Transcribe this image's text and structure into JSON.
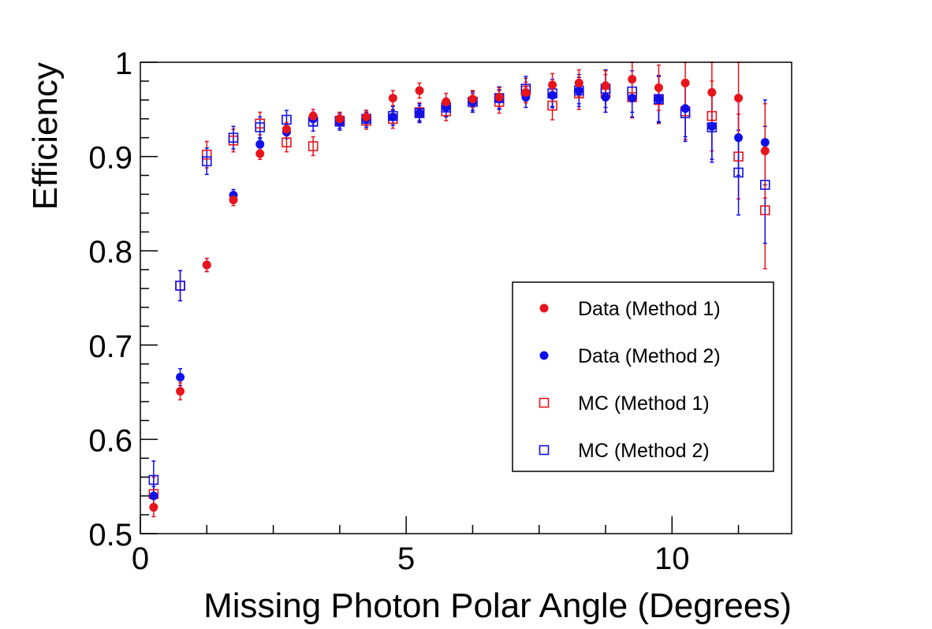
{
  "chart_data": {
    "type": "scatter",
    "title": "",
    "xlabel": "Missing Photon Polar Angle (Degrees)",
    "ylabel": "Efficiency",
    "xlim": [
      0,
      12.25
    ],
    "ylim": [
      0.5,
      1.0
    ],
    "x_ticks": [
      0,
      5,
      10
    ],
    "x_tick_labels": [
      "0",
      "5",
      "10"
    ],
    "y_ticks": [
      0.5,
      0.6,
      0.7,
      0.8,
      0.9,
      1.0
    ],
    "y_tick_labels": [
      "0.5",
      "0.6",
      "0.7",
      "0.8",
      "0.9",
      "1"
    ],
    "grid": false,
    "legend_position": "bottom-right",
    "x": [
      0.25,
      0.75,
      1.25,
      1.75,
      2.25,
      2.75,
      3.25,
      3.75,
      4.25,
      4.75,
      5.25,
      5.75,
      6.25,
      6.75,
      7.25,
      7.75,
      8.25,
      8.75,
      9.25,
      9.75,
      10.25,
      10.75,
      11.25,
      11.75
    ],
    "series": [
      {
        "name": "Data (Method 1)",
        "marker": "filled-circle",
        "color": "#e8141c",
        "values": [
          0.528,
          0.651,
          0.785,
          0.854,
          0.903,
          0.929,
          0.943,
          0.94,
          0.942,
          0.962,
          0.97,
          0.958,
          0.961,
          0.963,
          0.968,
          0.976,
          0.978,
          0.975,
          0.982,
          0.973,
          0.978,
          0.968,
          0.962,
          0.906
        ],
        "errors": [
          0.01,
          0.009,
          0.007,
          0.006,
          0.006,
          0.007,
          0.007,
          0.007,
          0.007,
          0.008,
          0.008,
          0.009,
          0.009,
          0.01,
          0.011,
          0.012,
          0.014,
          0.016,
          0.02,
          0.024,
          0.03,
          0.035,
          0.045,
          0.05
        ]
      },
      {
        "name": "Data (Method 2)",
        "marker": "filled-circle",
        "color": "#1010e8",
        "values": [
          0.54,
          0.666,
          0.785,
          0.859,
          0.913,
          0.926,
          0.94,
          0.937,
          0.94,
          0.942,
          0.946,
          0.952,
          0.958,
          0.961,
          0.963,
          0.965,
          0.97,
          0.963,
          0.962,
          0.961,
          0.951,
          0.932,
          0.92,
          0.915
        ],
        "errors": [
          0.01,
          0.009,
          0.007,
          0.006,
          0.006,
          0.007,
          0.007,
          0.007,
          0.007,
          0.007,
          0.008,
          0.009,
          0.009,
          0.01,
          0.011,
          0.012,
          0.014,
          0.016,
          0.02,
          0.024,
          0.03,
          0.035,
          0.04,
          0.045
        ]
      },
      {
        "name": "MC (Method 1)",
        "marker": "open-square",
        "color": "#e8141c",
        "values": [
          0.542,
          0.763,
          0.902,
          0.917,
          0.935,
          0.915,
          0.911,
          0.938,
          0.938,
          0.94,
          0.947,
          0.948,
          0.958,
          0.958,
          0.97,
          0.954,
          0.967,
          0.967,
          0.963,
          0.96,
          0.948,
          0.943,
          0.9,
          0.843
        ],
        "errors": [
          0.018,
          0.016,
          0.014,
          0.012,
          0.012,
          0.01,
          0.01,
          0.008,
          0.009,
          0.01,
          0.01,
          0.01,
          0.011,
          0.012,
          0.013,
          0.015,
          0.017,
          0.02,
          0.022,
          0.025,
          0.03,
          0.037,
          0.045,
          0.062
        ]
      },
      {
        "name": "MC (Method 2)",
        "marker": "open-square",
        "color": "#1010e8",
        "values": [
          0.557,
          0.763,
          0.895,
          0.92,
          0.931,
          0.939,
          0.937,
          0.937,
          0.94,
          0.943,
          0.946,
          0.952,
          0.958,
          0.962,
          0.972,
          0.967,
          0.97,
          0.972,
          0.969,
          0.961,
          0.946,
          0.931,
          0.883,
          0.87
        ],
        "errors": [
          0.02,
          0.016,
          0.014,
          0.012,
          0.011,
          0.01,
          0.01,
          0.009,
          0.009,
          0.01,
          0.01,
          0.01,
          0.011,
          0.012,
          0.013,
          0.015,
          0.017,
          0.02,
          0.022,
          0.025,
          0.03,
          0.037,
          0.045,
          0.062
        ]
      }
    ]
  }
}
